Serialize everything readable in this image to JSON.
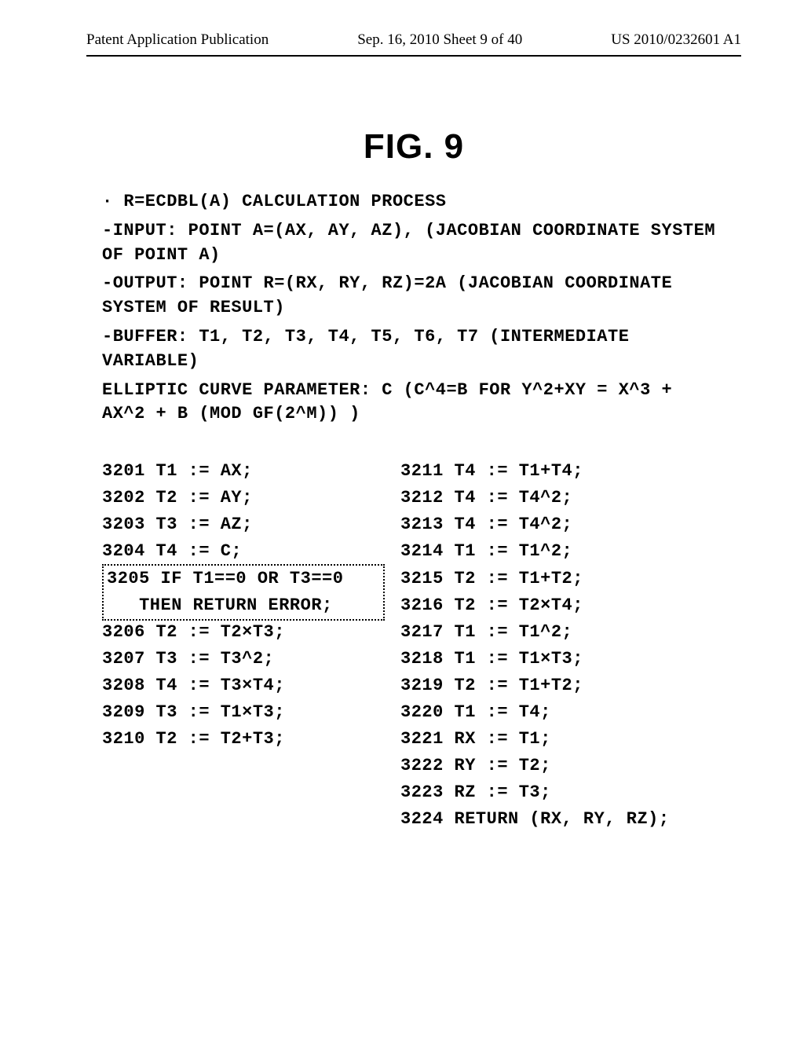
{
  "header": {
    "left": "Patent Application Publication",
    "center": "Sep. 16, 2010  Sheet 9 of 40",
    "right": "US 2010/0232601 A1"
  },
  "fig_title": "FIG. 9",
  "description": {
    "l1": "· R=ECDBL(A) CALCULATION PROCESS",
    "l2": "-INPUT: POINT A=(AX, AY, AZ), (JACOBIAN COORDINATE SYSTEM",
    "l2b": "OF POINT A)",
    "l3": "-OUTPUT: POINT R=(RX, RY, RZ)=2A (JACOBIAN COORDINATE",
    "l3b": "SYSTEM OF RESULT)",
    "l4": "-BUFFER: T1, T2, T3, T4, T5, T6, T7 (INTERMEDIATE",
    "l4b": "VARIABLE)",
    "l5": "ELLIPTIC CURVE PARAMETER: C (C^4=B FOR Y^2+XY = X^3 +",
    "l5b": "AX^2 + B (MOD GF(2^M)) )"
  },
  "code_left": {
    "c3201": "3201 T1 := AX;",
    "c3202": "3202 T2 := AY;",
    "c3203": "3203 T3 := AZ;",
    "c3204": "3204 T4 := C;",
    "c3205a": "3205 IF T1==0 OR T3==0",
    "c3205b": "   THEN RETURN ERROR;",
    "c3206": "3206 T2 := T2×T3;",
    "c3207": "3207 T3 := T3^2;",
    "c3208": "3208 T4 := T3×T4;",
    "c3209": "3209 T3 := T1×T3;",
    "c3210": "3210 T2 := T2+T3;"
  },
  "code_right": {
    "c3211": "3211 T4 := T1+T4;",
    "c3212": "3212 T4 := T4^2;",
    "c3213": "3213 T4 := T4^2;",
    "c3214": "3214 T1 := T1^2;",
    "c3215": "3215 T2 := T1+T2;",
    "c3216": "3216 T2 := T2×T4;",
    "c3217": "3217 T1 := T1^2;",
    "c3218": "3218 T1 := T1×T3;",
    "c3219": "3219 T2 := T1+T2;",
    "c3220": "3220 T1 := T4;",
    "c3221": "3221 RX := T1;",
    "c3222": "3222 RY := T2;",
    "c3223": "3223 RZ := T3;",
    "c3224": "3224 RETURN (RX, RY, RZ);"
  }
}
